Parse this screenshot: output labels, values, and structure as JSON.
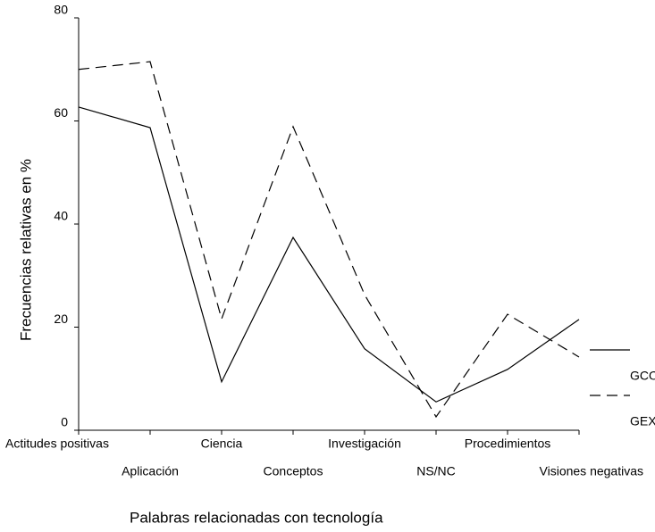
{
  "chart_data": {
    "type": "line",
    "xlabel": "Palabras relacionadas con tecnología",
    "ylabel": "Frecuencias relativas en %",
    "categories": [
      "Actitudes positivas",
      "Aplicación",
      "Ciencia",
      "Conceptos",
      "Investigación",
      "NS/NC",
      "Procedimientos",
      "Visiones negativas"
    ],
    "series": [
      {
        "name": "GCO",
        "color": "#000000",
        "dash": "solid",
        "values": [
          62.7,
          58.7,
          9.4,
          37.4,
          15.8,
          5.5,
          11.8,
          21.5
        ]
      },
      {
        "name": "GEX",
        "color": "#000000",
        "dash": "dashed",
        "values": [
          70,
          71.5,
          21.6,
          58.9,
          26.3,
          2.6,
          22.5,
          14.2
        ]
      }
    ],
    "ylim": [
      0,
      80
    ],
    "yticks": [
      0,
      20,
      40,
      60,
      80
    ],
    "grid": false,
    "legend": "right"
  }
}
